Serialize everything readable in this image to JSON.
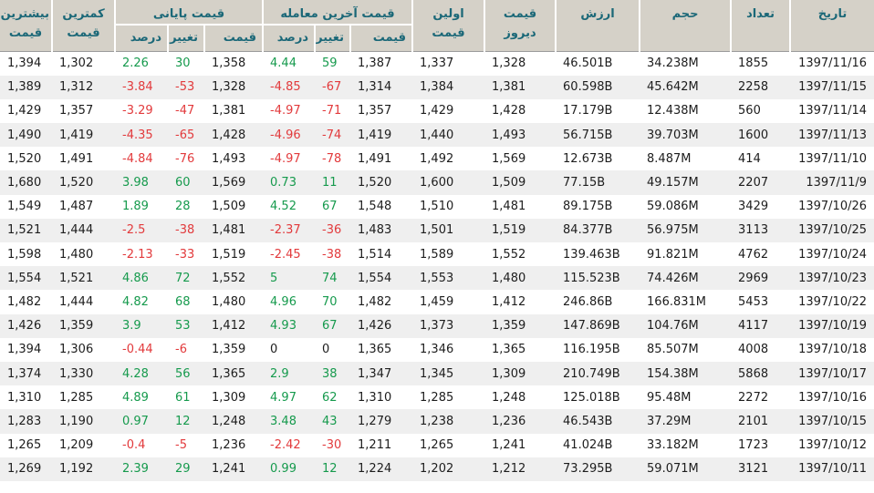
{
  "colors": {
    "header_bg": "#d5d1c8",
    "header_text": "#1b6878",
    "positive": "#169a4d",
    "negative": "#e23a3c",
    "neutral_text": "#1d1d1d",
    "row_alt_bg": "#efefef"
  },
  "table": {
    "headers": {
      "date": "تاریخ",
      "count": "تعداد",
      "volume": "حجم",
      "value": "ارزش",
      "yesterday_price": "قیمت دیروز",
      "first_price": "اولین قیمت",
      "last_trade_group": "قیمت آخرین معامله",
      "closing_group": "قیمت پایانی",
      "price": "قیمت",
      "change": "تغییر",
      "percent": "درصد",
      "lowest_price": "کمترین قیمت",
      "highest_price": "بیشترین قیمت"
    },
    "rows": [
      {
        "date": "1397/11/16",
        "count": "1855",
        "volume": "34.238M",
        "value": "46.501B",
        "yesterday": "1,328",
        "first": "1,337",
        "last_price": "1,387",
        "last_change": "59",
        "last_percent": "4.44",
        "close_price": "1,358",
        "close_change": "30",
        "close_percent": "2.26",
        "lowest": "1,302",
        "highest": "1,394"
      },
      {
        "date": "1397/11/15",
        "count": "2258",
        "volume": "45.642M",
        "value": "60.598B",
        "yesterday": "1,381",
        "first": "1,384",
        "last_price": "1,314",
        "last_change": "-67",
        "last_percent": "-4.85",
        "close_price": "1,328",
        "close_change": "-53",
        "close_percent": "-3.84",
        "lowest": "1,312",
        "highest": "1,389"
      },
      {
        "date": "1397/11/14",
        "count": "560",
        "volume": "12.438M",
        "value": "17.179B",
        "yesterday": "1,428",
        "first": "1,429",
        "last_price": "1,357",
        "last_change": "-71",
        "last_percent": "-4.97",
        "close_price": "1,381",
        "close_change": "-47",
        "close_percent": "-3.29",
        "lowest": "1,357",
        "highest": "1,429"
      },
      {
        "date": "1397/11/13",
        "count": "1600",
        "volume": "39.703M",
        "value": "56.715B",
        "yesterday": "1,493",
        "first": "1,440",
        "last_price": "1,419",
        "last_change": "-74",
        "last_percent": "-4.96",
        "close_price": "1,428",
        "close_change": "-65",
        "close_percent": "-4.35",
        "lowest": "1,419",
        "highest": "1,490"
      },
      {
        "date": "1397/11/10",
        "count": "414",
        "volume": "8.487M",
        "value": "12.673B",
        "yesterday": "1,569",
        "first": "1,492",
        "last_price": "1,491",
        "last_change": "-78",
        "last_percent": "-4.97",
        "close_price": "1,493",
        "close_change": "-76",
        "close_percent": "-4.84",
        "lowest": "1,491",
        "highest": "1,520"
      },
      {
        "date": "1397/11/9",
        "count": "2207",
        "volume": "49.157M",
        "value": "77.15B",
        "yesterday": "1,509",
        "first": "1,600",
        "last_price": "1,520",
        "last_change": "11",
        "last_percent": "0.73",
        "close_price": "1,569",
        "close_change": "60",
        "close_percent": "3.98",
        "lowest": "1,520",
        "highest": "1,680"
      },
      {
        "date": "1397/10/26",
        "count": "3429",
        "volume": "59.086M",
        "value": "89.175B",
        "yesterday": "1,481",
        "first": "1,510",
        "last_price": "1,548",
        "last_change": "67",
        "last_percent": "4.52",
        "close_price": "1,509",
        "close_change": "28",
        "close_percent": "1.89",
        "lowest": "1,487",
        "highest": "1,549"
      },
      {
        "date": "1397/10/25",
        "count": "3113",
        "volume": "56.975M",
        "value": "84.377B",
        "yesterday": "1,519",
        "first": "1,501",
        "last_price": "1,483",
        "last_change": "-36",
        "last_percent": "-2.37",
        "close_price": "1,481",
        "close_change": "-38",
        "close_percent": "-2.5",
        "lowest": "1,444",
        "highest": "1,521"
      },
      {
        "date": "1397/10/24",
        "count": "4762",
        "volume": "91.821M",
        "value": "139.463B",
        "yesterday": "1,552",
        "first": "1,589",
        "last_price": "1,514",
        "last_change": "-38",
        "last_percent": "-2.45",
        "close_price": "1,519",
        "close_change": "-33",
        "close_percent": "-2.13",
        "lowest": "1,480",
        "highest": "1,598"
      },
      {
        "date": "1397/10/23",
        "count": "2969",
        "volume": "74.426M",
        "value": "115.523B",
        "yesterday": "1,480",
        "first": "1,553",
        "last_price": "1,554",
        "last_change": "74",
        "last_percent": "5",
        "close_price": "1,552",
        "close_change": "72",
        "close_percent": "4.86",
        "lowest": "1,521",
        "highest": "1,554"
      },
      {
        "date": "1397/10/22",
        "count": "5453",
        "volume": "166.831M",
        "value": "246.86B",
        "yesterday": "1,412",
        "first": "1,459",
        "last_price": "1,482",
        "last_change": "70",
        "last_percent": "4.96",
        "close_price": "1,480",
        "close_change": "68",
        "close_percent": "4.82",
        "lowest": "1,444",
        "highest": "1,482"
      },
      {
        "date": "1397/10/19",
        "count": "4117",
        "volume": "104.76M",
        "value": "147.869B",
        "yesterday": "1,359",
        "first": "1,373",
        "last_price": "1,426",
        "last_change": "67",
        "last_percent": "4.93",
        "close_price": "1,412",
        "close_change": "53",
        "close_percent": "3.9",
        "lowest": "1,359",
        "highest": "1,426"
      },
      {
        "date": "1397/10/18",
        "count": "4008",
        "volume": "85.507M",
        "value": "116.195B",
        "yesterday": "1,365",
        "first": "1,346",
        "last_price": "1,365",
        "last_change": "0",
        "last_percent": "0",
        "close_price": "1,359",
        "close_change": "-6",
        "close_percent": "-0.44",
        "lowest": "1,306",
        "highest": "1,394"
      },
      {
        "date": "1397/10/17",
        "count": "5868",
        "volume": "154.38M",
        "value": "210.749B",
        "yesterday": "1,309",
        "first": "1,345",
        "last_price": "1,347",
        "last_change": "38",
        "last_percent": "2.9",
        "close_price": "1,365",
        "close_change": "56",
        "close_percent": "4.28",
        "lowest": "1,330",
        "highest": "1,374"
      },
      {
        "date": "1397/10/16",
        "count": "2272",
        "volume": "95.48M",
        "value": "125.018B",
        "yesterday": "1,248",
        "first": "1,285",
        "last_price": "1,310",
        "last_change": "62",
        "last_percent": "4.97",
        "close_price": "1,309",
        "close_change": "61",
        "close_percent": "4.89",
        "lowest": "1,285",
        "highest": "1,310"
      },
      {
        "date": "1397/10/15",
        "count": "2101",
        "volume": "37.29M",
        "value": "46.543B",
        "yesterday": "1,236",
        "first": "1,238",
        "last_price": "1,279",
        "last_change": "43",
        "last_percent": "3.48",
        "close_price": "1,248",
        "close_change": "12",
        "close_percent": "0.97",
        "lowest": "1,190",
        "highest": "1,283"
      },
      {
        "date": "1397/10/12",
        "count": "1723",
        "volume": "33.182M",
        "value": "41.024B",
        "yesterday": "1,241",
        "first": "1,265",
        "last_price": "1,211",
        "last_change": "-30",
        "last_percent": "-2.42",
        "close_price": "1,236",
        "close_change": "-5",
        "close_percent": "-0.4",
        "lowest": "1,209",
        "highest": "1,265"
      },
      {
        "date": "1397/10/11",
        "count": "3121",
        "volume": "59.071M",
        "value": "73.295B",
        "yesterday": "1,212",
        "first": "1,202",
        "last_price": "1,224",
        "last_change": "12",
        "last_percent": "0.99",
        "close_price": "1,241",
        "close_change": "29",
        "close_percent": "2.39",
        "lowest": "1,192",
        "highest": "1,269"
      }
    ]
  }
}
